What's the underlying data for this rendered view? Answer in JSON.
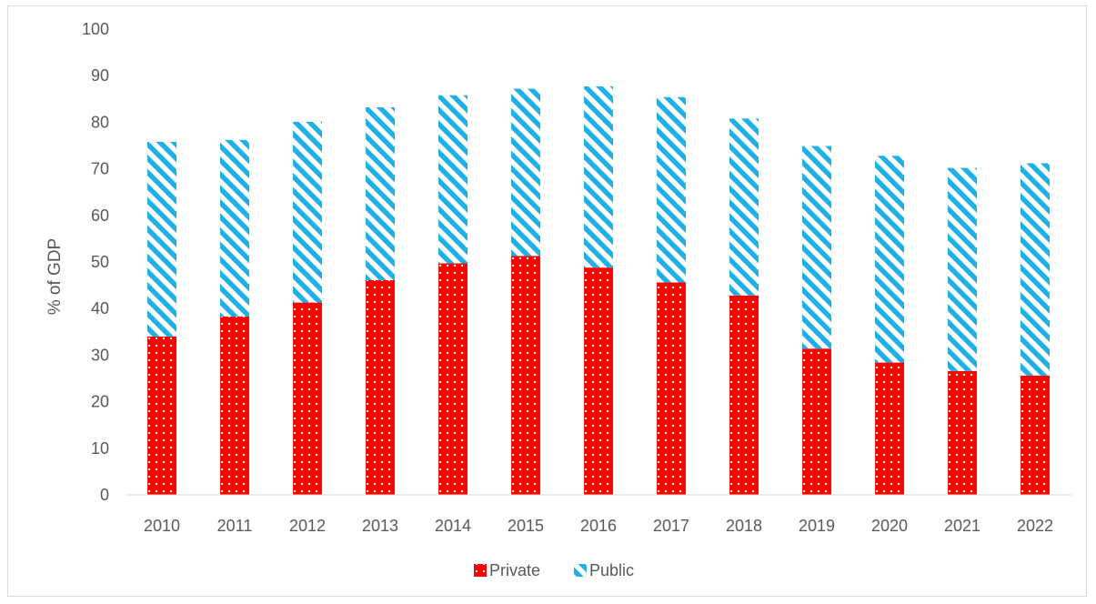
{
  "chart_data": {
    "type": "bar",
    "stacked": true,
    "title": "",
    "xlabel": "",
    "ylabel": "% of GDP",
    "ylim": [
      0,
      100
    ],
    "yticks": [
      0,
      10,
      20,
      30,
      40,
      50,
      60,
      70,
      80,
      90,
      100
    ],
    "categories": [
      "2010",
      "2011",
      "2012",
      "2013",
      "2014",
      "2015",
      "2016",
      "2017",
      "2018",
      "2019",
      "2020",
      "2021",
      "2022"
    ],
    "series": [
      {
        "name": "Private",
        "color": "#ff0000",
        "pattern": "white-dots",
        "values": [
          34,
          38.3,
          41.3,
          46.1,
          49.7,
          51.3,
          48.8,
          45.6,
          42.8,
          31.4,
          28.4,
          26.6,
          25.6
        ]
      },
      {
        "name": "Public",
        "color": "#1fb0e6",
        "pattern": "diagonal-stripes",
        "values": [
          41.8,
          37.9,
          38.8,
          37.1,
          36.1,
          35.9,
          38.9,
          39.8,
          38.0,
          43.5,
          44.4,
          43.6,
          45.6
        ]
      }
    ],
    "legend": {
      "position": "bottom"
    }
  }
}
